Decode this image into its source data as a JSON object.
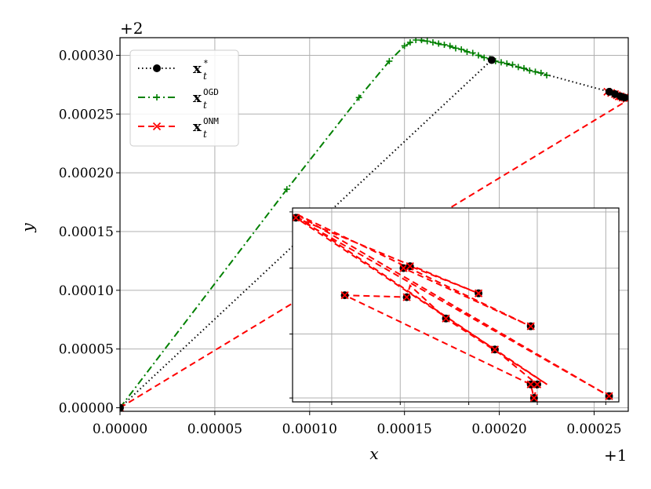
{
  "chart_data": {
    "type": "line",
    "xlabel": "x",
    "ylabel": "y",
    "x_offset": "+1",
    "y_offset": "+2",
    "xlim": [
      0.0,
      0.000268
    ],
    "ylim": [
      -3e-06,
      0.000315
    ],
    "x_ticks": [
      {
        "value": 0.0,
        "label": "0.00000"
      },
      {
        "value": 5e-05,
        "label": "0.00005"
      },
      {
        "value": 0.0001,
        "label": "0.00010"
      },
      {
        "value": 0.00015,
        "label": "0.00015"
      },
      {
        "value": 0.0002,
        "label": "0.00020"
      },
      {
        "value": 0.00025,
        "label": "0.00025"
      }
    ],
    "y_ticks": [
      {
        "value": 0.0,
        "label": "0.00000"
      },
      {
        "value": 5e-05,
        "label": "0.00005"
      },
      {
        "value": 0.0001,
        "label": "0.00010"
      },
      {
        "value": 0.00015,
        "label": "0.00015"
      },
      {
        "value": 0.0002,
        "label": "0.00020"
      },
      {
        "value": 0.00025,
        "label": "0.00025"
      },
      {
        "value": 0.0003,
        "label": "0.00030"
      }
    ],
    "grid": true,
    "legend_position": "top-left",
    "series": [
      {
        "name_main": "x",
        "name_sub": "t",
        "name_sup": "*",
        "color": "#000000",
        "dash": "1.5,3.5",
        "marker": "circle",
        "points": [
          [
            0.0,
            0.0
          ],
          [
            0.000196,
            0.000296
          ],
          [
            0.000226,
            0.000283
          ],
          [
            0.000258,
            0.000269
          ],
          [
            0.000268,
            0.000263
          ]
        ],
        "marker_points": [
          [
            0.0,
            0.0
          ],
          [
            0.000196,
            0.000296
          ],
          [
            0.000258,
            0.000269
          ],
          [
            0.000261,
            0.000267
          ],
          [
            0.000264,
            0.000265
          ],
          [
            0.000266,
            0.000264
          ]
        ]
      },
      {
        "name_main": "x",
        "name_sub": "t",
        "name_sup": "OGD",
        "color": "#008000",
        "dash": "9,4,2,4",
        "marker": "plus",
        "points": [
          [
            0.0,
            0.0
          ],
          [
            8.8e-05,
            0.000186
          ],
          [
            0.000126,
            0.000264
          ],
          [
            0.000142,
            0.000295
          ],
          [
            0.00015,
            0.000308
          ],
          [
            0.000156,
            0.000313
          ],
          [
            0.000162,
            0.000312
          ],
          [
            0.00018,
            0.000305
          ],
          [
            0.000196,
            0.000296
          ],
          [
            0.00021,
            0.00029
          ],
          [
            0.000226,
            0.000283
          ]
        ],
        "marker_points": [
          [
            0.0,
            0.0
          ],
          [
            8.8e-05,
            0.000186
          ],
          [
            0.000126,
            0.000264
          ],
          [
            0.000142,
            0.000295
          ],
          [
            0.00015,
            0.000308
          ],
          [
            0.000153,
            0.000311
          ],
          [
            0.000156,
            0.000313
          ],
          [
            0.000159,
            0.000313
          ],
          [
            0.000162,
            0.000312
          ],
          [
            0.000165,
            0.000311
          ],
          [
            0.000168,
            0.00031
          ],
          [
            0.000171,
            0.000309
          ],
          [
            0.000174,
            0.000308
          ],
          [
            0.000177,
            0.000306
          ],
          [
            0.00018,
            0.000305
          ],
          [
            0.000183,
            0.000303
          ],
          [
            0.000186,
            0.000302
          ],
          [
            0.000189,
            0.0003
          ],
          [
            0.000192,
            0.000298
          ],
          [
            0.000195,
            0.000297
          ],
          [
            0.000198,
            0.000295
          ],
          [
            0.000201,
            0.000294
          ],
          [
            0.000204,
            0.000293
          ],
          [
            0.000207,
            0.000292
          ],
          [
            0.00021,
            0.00029
          ],
          [
            0.000213,
            0.000289
          ],
          [
            0.000216,
            0.000287
          ],
          [
            0.000219,
            0.000286
          ],
          [
            0.000222,
            0.000285
          ],
          [
            0.000225,
            0.000283
          ]
        ]
      },
      {
        "name_main": "x",
        "name_sub": "t",
        "name_sup": "ONM",
        "color": "#ff0000",
        "dash": "8,5",
        "marker": "x",
        "points": [
          [
            0.0,
            0.0
          ],
          [
            0.000268,
            0.000262
          ]
        ],
        "marker_points": [
          [
            0.0,
            0.0
          ],
          [
            0.000257,
            0.000269
          ],
          [
            0.000259,
            0.000268
          ],
          [
            0.000261,
            0.000267
          ],
          [
            0.000262,
            0.000266
          ],
          [
            0.000263,
            0.000265
          ],
          [
            0.000264,
            0.000265
          ],
          [
            0.000265,
            0.000264
          ],
          [
            0.000266,
            0.000264
          ],
          [
            0.000267,
            0.000263
          ]
        ]
      }
    ],
    "inset": {
      "xlim": [
        0.0,
        1.0
      ],
      "ylim": [
        0.0,
        1.0
      ],
      "x_gridlines": [
        0.12,
        0.33,
        0.54,
        0.75,
        0.96
      ],
      "y_gridlines": [
        0.02,
        0.35,
        0.69,
        0.98
      ],
      "path": [
        [
          0.01,
          0.95
        ],
        [
          0.97,
          0.03
        ],
        [
          0.01,
          0.97
        ],
        [
          0.73,
          0.39
        ],
        [
          0.34,
          0.69
        ],
        [
          0.36,
          0.7
        ],
        [
          0.57,
          0.56
        ],
        [
          0.01,
          0.95
        ],
        [
          0.62,
          0.27
        ],
        [
          0.75,
          0.09
        ],
        [
          0.74,
          0.02
        ],
        [
          0.73,
          0.09
        ],
        [
          0.16,
          0.55
        ],
        [
          0.35,
          0.54
        ],
        [
          0.36,
          0.6
        ],
        [
          0.47,
          0.43
        ],
        [
          0.78,
          0.09
        ],
        [
          0.01,
          0.96
        ]
      ],
      "markers": [
        [
          0.01,
          0.95
        ],
        [
          0.16,
          0.55
        ],
        [
          0.34,
          0.69
        ],
        [
          0.36,
          0.7
        ],
        [
          0.35,
          0.54
        ],
        [
          0.47,
          0.43
        ],
        [
          0.57,
          0.56
        ],
        [
          0.73,
          0.39
        ],
        [
          0.62,
          0.27
        ],
        [
          0.73,
          0.09
        ],
        [
          0.75,
          0.09
        ],
        [
          0.74,
          0.02
        ],
        [
          0.97,
          0.03
        ]
      ]
    }
  }
}
